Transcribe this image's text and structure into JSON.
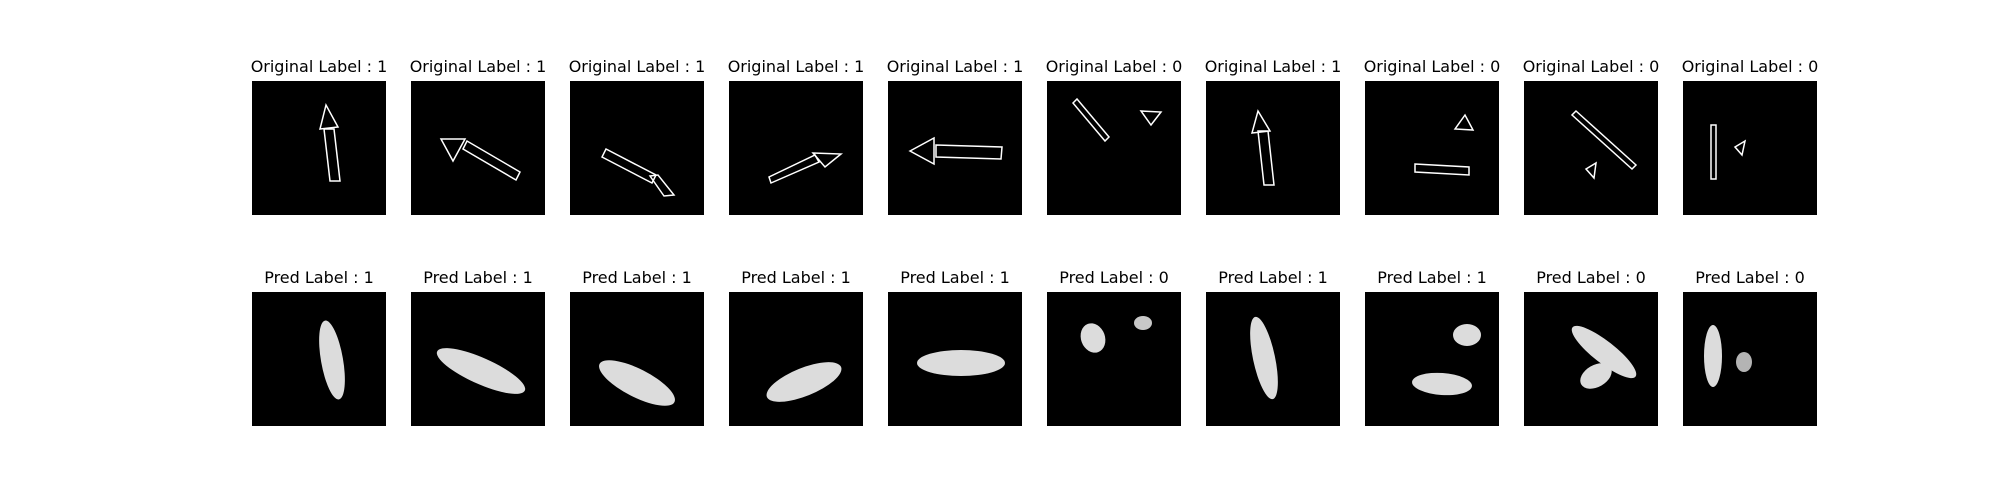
{
  "original_row": {
    "label_prefix": "Original Label : ",
    "labels": [
      "1",
      "1",
      "1",
      "1",
      "1",
      "0",
      "1",
      "0",
      "0",
      "0"
    ],
    "titles": [
      "Original Label : 1",
      "Original Label : 1",
      "Original Label : 1",
      "Original Label : 1",
      "Original Label : 1",
      "Original Label : 0",
      "Original Label : 1",
      "Original Label : 0",
      "Original Label : 0",
      "Original Label : 0"
    ]
  },
  "predicted_row": {
    "label_prefix": "Pred Label : ",
    "labels": [
      "1",
      "1",
      "1",
      "1",
      "1",
      "0",
      "1",
      "1",
      "0",
      "0"
    ],
    "titles": [
      "Pred Label : 1",
      "Pred Label : 1",
      "Pred Label : 1",
      "Pred Label : 1",
      "Pred Label : 1",
      "Pred Label : 0",
      "Pred Label : 1",
      "Pred Label : 1",
      "Pred Label : 0",
      "Pred Label : 0"
    ]
  },
  "colors": {
    "background": "#ffffff",
    "image_background": "#000000",
    "outline": "#ffffff",
    "blob": "#dcdcdc"
  }
}
